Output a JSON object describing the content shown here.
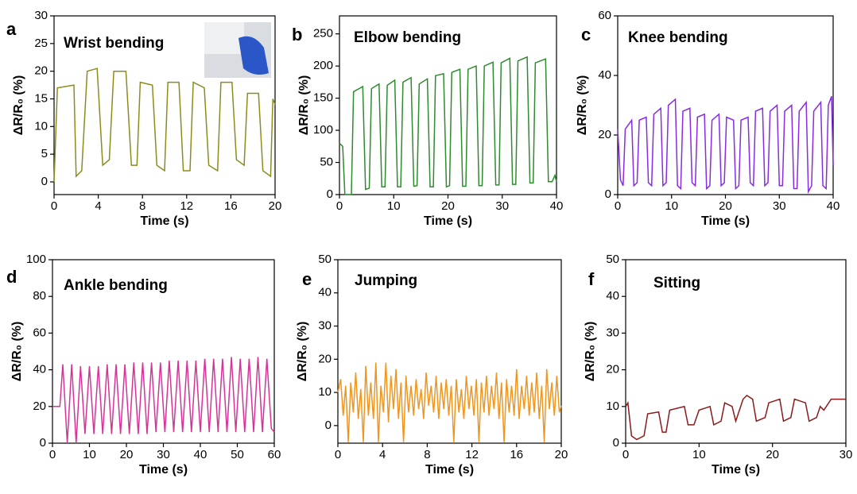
{
  "chart_data": [
    {
      "type": "line",
      "panel_label": "a",
      "title": "Wrist bending",
      "x_label": "Time (s)",
      "y_label": "ΔR/R₀ (%)",
      "color": "#8c8c1e",
      "xlim": [
        0,
        20
      ],
      "ylim": [
        -2.3,
        30
      ],
      "xticks": [
        0,
        4,
        8,
        12,
        16,
        20
      ],
      "yticks": [
        0,
        5,
        10,
        15,
        20,
        25,
        30
      ],
      "x": [
        0,
        0.3,
        1.8,
        2.0,
        2.5,
        3.0,
        3.9,
        4.4,
        5.0,
        5.4,
        6.5,
        7.0,
        7.5,
        7.8,
        8.9,
        9.3,
        10.0,
        10.3,
        11.3,
        11.7,
        12.3,
        12.6,
        13.6,
        14.0,
        14.8,
        15.1,
        16.1,
        16.5,
        17.2,
        17.5,
        18.5,
        18.9,
        19.6,
        19.8,
        20
      ],
      "values": [
        0,
        17,
        17.5,
        1,
        2,
        20,
        20.5,
        3,
        4,
        20,
        20,
        3,
        3,
        18,
        17.5,
        3,
        2,
        18,
        18,
        2,
        2,
        18,
        17,
        3,
        2,
        18,
        18,
        4,
        3,
        16,
        16,
        2,
        1,
        15,
        14
      ]
    },
    {
      "type": "line",
      "panel_label": "b",
      "title": "Elbow bending",
      "x_label": "Time (s)",
      "y_label": "ΔR/R₀ (%)",
      "color": "#2e8b2e",
      "xlim": [
        0,
        40
      ],
      "ylim": [
        0,
        278
      ],
      "xticks": [
        0,
        10,
        20,
        30,
        40
      ],
      "yticks": [
        0,
        50,
        100,
        150,
        200,
        250
      ],
      "x": [
        0,
        0.6,
        1.0,
        2.2,
        2.6,
        4.3,
        4.8,
        5.5,
        5.9,
        7.3,
        7.8,
        8.4,
        8.8,
        10.2,
        10.7,
        11.3,
        11.7,
        13.2,
        13.7,
        14.3,
        14.7,
        16.2,
        16.7,
        17.3,
        17.7,
        19.2,
        19.7,
        20.3,
        20.7,
        22.2,
        22.7,
        23.3,
        23.7,
        25.2,
        25.7,
        26.3,
        26.7,
        28.3,
        28.8,
        29.4,
        29.8,
        31.4,
        31.9,
        32.5,
        32.9,
        34.6,
        35.1,
        35.7,
        36.1,
        38.0,
        38.5,
        39.2,
        39.7,
        40
      ],
      "values": [
        80,
        75,
        0,
        0,
        160,
        168,
        8,
        10,
        165,
        172,
        12,
        12,
        170,
        178,
        12,
        12,
        175,
        182,
        13,
        14,
        172,
        180,
        12,
        12,
        185,
        188,
        12,
        14,
        190,
        195,
        13,
        13,
        195,
        200,
        14,
        14,
        200,
        206,
        15,
        15,
        205,
        212,
        16,
        16,
        208,
        214,
        18,
        18,
        205,
        211,
        20,
        20,
        30,
        20
      ]
    },
    {
      "type": "line",
      "panel_label": "c",
      "title": "Knee bending",
      "x_label": "Time (s)",
      "y_label": "ΔR/R₀ (%)",
      "color": "#8a2be2",
      "xlim": [
        0,
        40
      ],
      "ylim": [
        0,
        60
      ],
      "xticks": [
        0,
        10,
        20,
        30,
        40
      ],
      "yticks": [
        0,
        20,
        40,
        60
      ],
      "x": [
        0,
        0.5,
        1.0,
        1.4,
        2.6,
        3.0,
        3.6,
        4.0,
        5.3,
        5.7,
        6.3,
        6.7,
        8.0,
        8.4,
        9.0,
        9.4,
        10.7,
        11.1,
        11.7,
        12.1,
        13.4,
        13.8,
        14.4,
        14.8,
        16.1,
        16.5,
        17.1,
        17.5,
        18.8,
        19.2,
        19.8,
        20.2,
        21.5,
        21.9,
        22.5,
        22.9,
        24.2,
        24.6,
        25.2,
        25.6,
        26.9,
        27.3,
        27.9,
        28.3,
        29.6,
        30.0,
        30.6,
        31.0,
        32.3,
        32.7,
        33.3,
        33.7,
        35.0,
        35.4,
        36.0,
        36.4,
        37.7,
        38.1,
        38.7,
        39.1,
        39.7,
        40
      ],
      "values": [
        22,
        5,
        3,
        22,
        25,
        3,
        4,
        25,
        26,
        4,
        3,
        27,
        29,
        3,
        4,
        30,
        32,
        3,
        2,
        28,
        29,
        4,
        3,
        26,
        27,
        2,
        3,
        25,
        27,
        3,
        4,
        26,
        25,
        2,
        3,
        25,
        26,
        4,
        3,
        28,
        29,
        3,
        4,
        28,
        30,
        3,
        3,
        28,
        30,
        2,
        2,
        28,
        31,
        1,
        3,
        28,
        31,
        3,
        2,
        30,
        33,
        10
      ]
    },
    {
      "type": "line",
      "panel_label": "d",
      "title": "Ankle bending",
      "x_label": "Time (s)",
      "y_label": "ΔR/R₀ (%)",
      "color": "#d6339a",
      "xlim": [
        0,
        60
      ],
      "ylim": [
        0,
        100
      ],
      "xticks": [
        0,
        10,
        20,
        30,
        40,
        50,
        60
      ],
      "yticks": [
        0,
        20,
        40,
        60,
        80,
        100
      ],
      "x": [
        0,
        2.0,
        2.8,
        4.0,
        5.2,
        6.4,
        7.6,
        8.8,
        10.0,
        11.2,
        12.4,
        13.6,
        14.8,
        16.0,
        17.2,
        18.4,
        19.6,
        20.8,
        22.0,
        23.2,
        24.4,
        25.6,
        26.8,
        28.0,
        29.2,
        30.4,
        31.6,
        32.8,
        34.0,
        35.2,
        36.4,
        37.6,
        38.8,
        40.0,
        41.2,
        42.4,
        43.6,
        44.8,
        46.0,
        47.2,
        48.4,
        49.6,
        50.8,
        52.0,
        53.2,
        54.4,
        55.6,
        56.8,
        58.0,
        59.2,
        60
      ],
      "values": [
        20,
        20,
        43,
        0,
        43,
        0,
        42,
        5,
        42,
        5,
        42,
        5,
        43,
        5,
        43,
        5,
        43,
        5,
        44,
        5,
        44,
        5,
        44,
        6,
        44,
        6,
        45,
        6,
        45,
        6,
        45,
        6,
        45,
        6,
        46,
        6,
        46,
        6,
        46,
        6,
        47,
        6,
        46,
        6,
        46,
        6,
        47,
        6,
        46,
        8,
        6
      ]
    },
    {
      "type": "line",
      "panel_label": "e",
      "title": "Jumping",
      "x_label": "Time (s)",
      "y_label": "ΔR/R₀ (%)",
      "color": "#f0961e",
      "xlim": [
        0,
        20
      ],
      "ylim": [
        -5.3,
        50
      ],
      "xticks": [
        0,
        4,
        8,
        12,
        16,
        20
      ],
      "yticks": [
        0,
        10,
        20,
        30,
        40,
        50
      ],
      "x": [
        0,
        0.25,
        0.48,
        0.7,
        0.93,
        1.15,
        1.38,
        1.6,
        1.83,
        2.05,
        2.28,
        2.5,
        2.73,
        2.95,
        3.18,
        3.4,
        3.63,
        3.85,
        4.08,
        4.3,
        4.53,
        4.75,
        4.98,
        5.2,
        5.43,
        5.65,
        5.88,
        6.1,
        6.33,
        6.55,
        6.78,
        7.0,
        7.23,
        7.45,
        7.68,
        7.9,
        8.13,
        8.35,
        8.58,
        8.8,
        9.03,
        9.25,
        9.48,
        9.7,
        9.93,
        10.15,
        10.38,
        10.6,
        10.83,
        11.05,
        11.28,
        11.5,
        11.73,
        11.95,
        12.18,
        12.4,
        12.63,
        12.85,
        13.08,
        13.3,
        13.53,
        13.75,
        13.98,
        14.2,
        14.43,
        14.65,
        14.88,
        15.1,
        15.33,
        15.55,
        15.78,
        16.0,
        16.23,
        16.45,
        16.68,
        16.9,
        17.13,
        17.35,
        17.58,
        17.8,
        18.03,
        18.25,
        18.48,
        18.7,
        18.93,
        19.15,
        19.38,
        19.6,
        19.83,
        20
      ],
      "values": [
        10,
        14,
        3,
        12,
        -5,
        13,
        4,
        16,
        2,
        11,
        -5,
        18,
        3,
        13,
        2,
        19,
        -5,
        12,
        4,
        19,
        1,
        15,
        5,
        17,
        2,
        13,
        -5,
        15,
        4,
        12,
        3,
        14,
        5,
        11,
        2,
        16,
        6,
        12,
        4,
        15,
        2,
        13,
        5,
        14,
        3,
        12,
        -5,
        14,
        4,
        11,
        2,
        15,
        5,
        12,
        3,
        14,
        -5,
        13,
        4,
        15,
        3,
        12,
        5,
        16,
        2,
        13,
        -5,
        14,
        4,
        12,
        3,
        17,
        2,
        12,
        5,
        15,
        3,
        13,
        4,
        16,
        2,
        12,
        -5,
        17,
        5,
        13,
        3,
        15,
        4,
        6
      ]
    },
    {
      "type": "line",
      "panel_label": "f",
      "title": "Sitting",
      "x_label": "Time (s)",
      "y_label": "ΔR/R₀ (%)",
      "color": "#8b1a1a",
      "xlim": [
        0,
        30
      ],
      "ylim": [
        0,
        50
      ],
      "xticks": [
        0,
        10,
        20,
        30
      ],
      "yticks": [
        0,
        10,
        20,
        30,
        40,
        50
      ],
      "x": [
        0,
        0.3,
        0.8,
        1.5,
        2.5,
        3.0,
        4.5,
        5.0,
        5.5,
        6.0,
        8.0,
        8.5,
        9.3,
        10.0,
        11.5,
        12.0,
        13.0,
        13.5,
        14.5,
        15.0,
        16.0,
        16.5,
        17.3,
        17.8,
        19.0,
        19.5,
        21.0,
        21.5,
        22.5,
        23.0,
        24.5,
        25.0,
        26.0,
        26.5,
        27.0,
        28.0,
        30.0
      ],
      "values": [
        10,
        11,
        2,
        1,
        2,
        8,
        8.5,
        3,
        3,
        9,
        10,
        5,
        5,
        9,
        10,
        5,
        6,
        11,
        10,
        6,
        12,
        13,
        12,
        6,
        7,
        11,
        12,
        6,
        7,
        12,
        11,
        6,
        7,
        10,
        9,
        12,
        12
      ]
    }
  ]
}
